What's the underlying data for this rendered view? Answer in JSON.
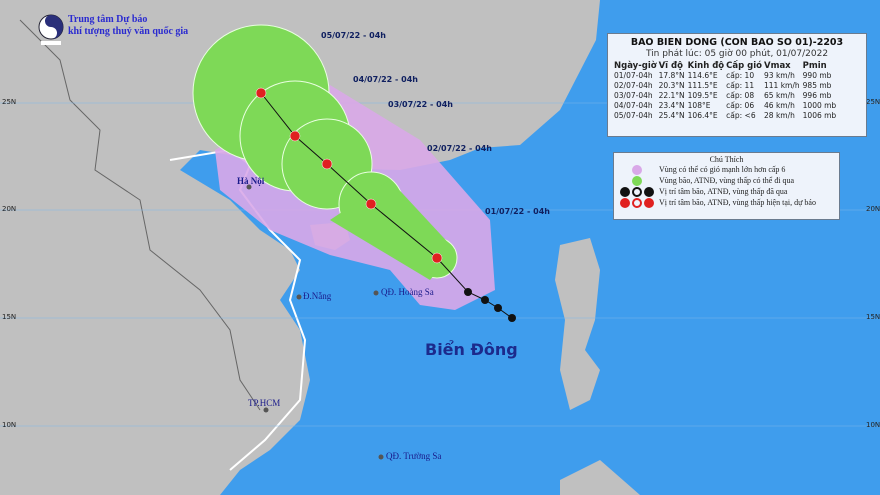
{
  "header": {
    "org_line1": "Trung tâm Dự báo",
    "org_line2": "khí tượng thuỷ văn quốc gia"
  },
  "info": {
    "title": "BAO BIEN DONG (CON BAO SO 01)-2203",
    "issued": "Tin phát lúc: 05 giờ 00 phút, 01/07/2022",
    "columns": [
      "Ngày-giờ",
      "Vĩ độ",
      "Kinh độ",
      "Cấp gió",
      "Vmax",
      "Pmin"
    ],
    "rows": [
      [
        "01/07-04h",
        "17.8°N",
        "114.6°E",
        "cấp: 10",
        "93 km/h",
        "990 mb"
      ],
      [
        "02/07-04h",
        "20.3°N",
        "111.5°E",
        "cấp: 11",
        "111 km/h",
        "985 mb"
      ],
      [
        "03/07-04h",
        "22.1°N",
        "109.5°E",
        "cấp: 08",
        "65 km/h",
        "996 mb"
      ],
      [
        "04/07-04h",
        "23.4°N",
        "108°E",
        "cấp: 06",
        "46 km/h",
        "1000 mb"
      ],
      [
        "05/07-04h",
        "25.4°N",
        "106.4°E",
        "cấp: <6",
        "28 km/h",
        "1006 mb"
      ]
    ]
  },
  "legend": {
    "title": "Chú Thích",
    "items": [
      "Vùng có thể có gió mạnh lớn hơn cấp 6",
      "Vùng bão, ATNĐ, vùng thấp có thể đi qua",
      "Vị trí tâm bão, ATNĐ, vùng thấp đã qua",
      "Vị trí tâm bão, ATNĐ, vùng thấp hiện tại, dự báo"
    ],
    "colors": {
      "strong_wind": "#d9a8e8",
      "storm_zone": "#7ed957",
      "past": "#111111",
      "forecast": "#e02020"
    }
  },
  "map": {
    "sea_name": "Biển Đông",
    "places": [
      "Hà Nội",
      "Đ.Nẵng",
      "QĐ. Hoàng Sa",
      "TP.HCM",
      "QĐ. Trường Sa"
    ],
    "forecast_dates": [
      "01/07/22 - 04h",
      "02/07/22 - 04h",
      "03/07/22 - 04h",
      "04/07/22 - 04h",
      "05/07/22 - 04h"
    ],
    "lat_labels": [
      "25N",
      "20N",
      "15N",
      "10N"
    ],
    "colors": {
      "sea": "#3f9ded",
      "land": "#c0c0c0"
    }
  }
}
